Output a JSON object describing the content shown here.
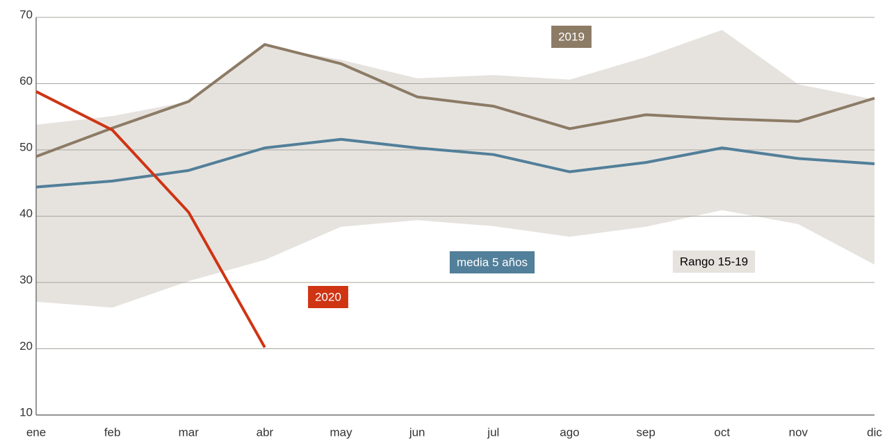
{
  "chart_data": {
    "type": "line",
    "categories": [
      "ene",
      "feb",
      "mar",
      "abr",
      "may",
      "jun",
      "jul",
      "ago",
      "sep",
      "oct",
      "nov",
      "dic"
    ],
    "band": {
      "name": "Rango 15-19",
      "color": "#e6e3df",
      "upper": [
        53.8,
        55.1,
        57.3,
        65.7,
        63.6,
        60.8,
        61.3,
        60.6,
        64.0,
        68.1,
        59.9,
        57.6
      ],
      "lower": [
        27.1,
        26.2,
        30.2,
        33.4,
        38.4,
        39.4,
        38.5,
        36.9,
        38.4,
        40.9,
        38.8,
        32.7
      ]
    },
    "series": [
      {
        "name": "2019",
        "color": "#8c7b65",
        "values": [
          49.0,
          53.3,
          57.3,
          65.9,
          63.0,
          58.0,
          56.6,
          53.2,
          55.3,
          54.7,
          54.3,
          57.8
        ]
      },
      {
        "name": "media 5 años",
        "color": "#527f99",
        "values": [
          44.4,
          45.3,
          46.9,
          50.3,
          51.6,
          50.3,
          49.3,
          46.7,
          48.1,
          50.3,
          48.7,
          47.9
        ]
      },
      {
        "name": "2020",
        "color": "#cf3413",
        "values": [
          58.8,
          53.0,
          40.6,
          20.2,
          null,
          null,
          null,
          null,
          null,
          null,
          null,
          null
        ]
      }
    ],
    "ylim": [
      10,
      70
    ],
    "yticks": [
      10,
      20,
      30,
      40,
      50,
      60,
      70
    ],
    "grid": true
  }
}
